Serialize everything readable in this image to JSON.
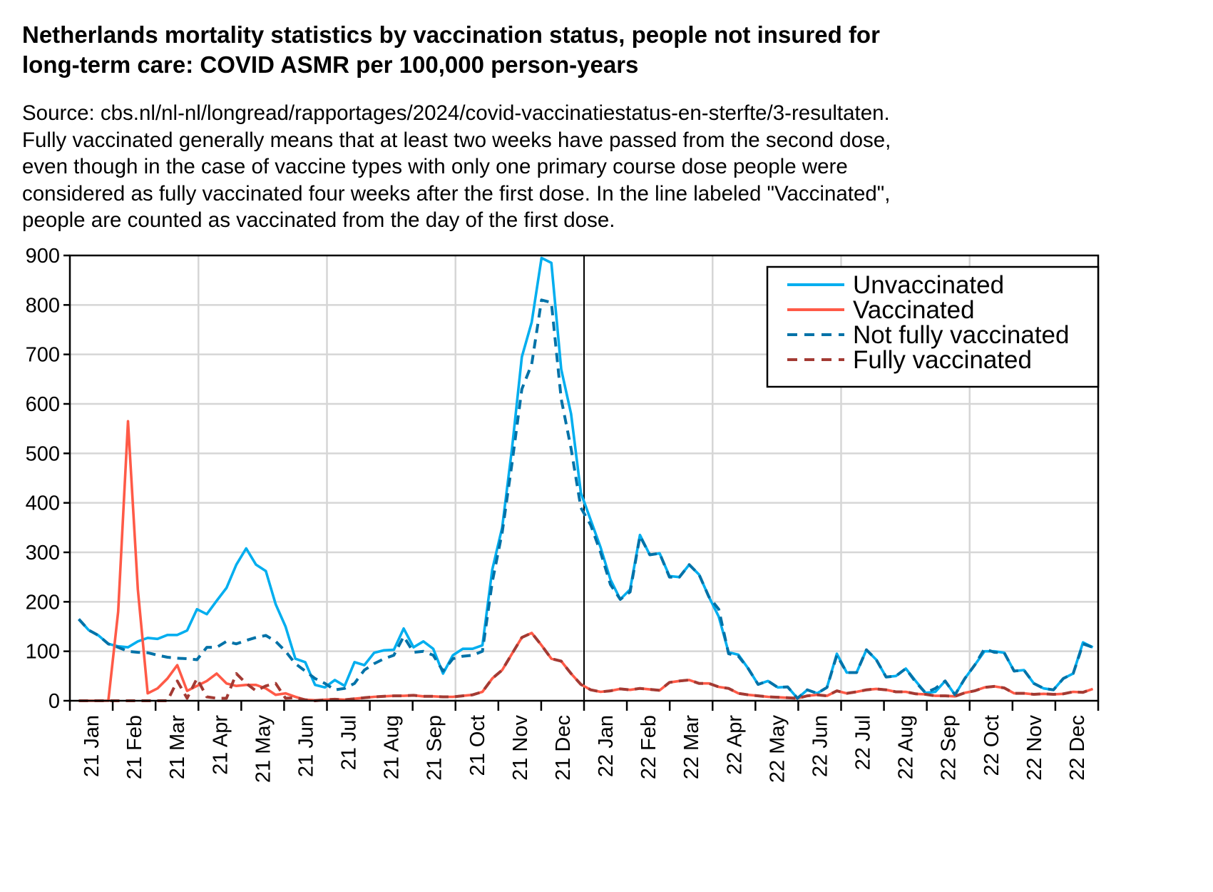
{
  "chart_data": {
    "type": "line",
    "title": "Netherlands mortality statistics by vaccination status, people not insured for long-term care: COVID ASMR per 100,000 person-years",
    "title_lines": [
      "Netherlands mortality statistics by vaccination status, people not insured for",
      "long-term care: COVID ASMR per 100,000 person-years"
    ],
    "subtitle_lines": [
      "Source: cbs.nl/nl-nl/longread/rapportages/2024/covid-vaccinatiestatus-en-sterfte/3-resultaten.",
      "Fully vaccinated generally means that at least two weeks have passed from the second dose,",
      "even though in the case of vaccine types with only one primary course dose people were",
      "considered as fully vaccinated four weeks after the first dose. In the line labeled \"Vaccinated\",",
      "people are counted as vaccinated from the day of the first dose."
    ],
    "xlabel": "",
    "ylabel": "",
    "ylim": [
      0,
      900
    ],
    "yticks": [
      0,
      100,
      200,
      300,
      400,
      500,
      600,
      700,
      800,
      900
    ],
    "x_unit": "week",
    "x_range_weeks": [
      1,
      104
    ],
    "xtick_labels": [
      "21 Jan",
      "21 Feb",
      "21 Mar",
      "21 Apr",
      "21 May",
      "21 Jun",
      "21 Jul",
      "21 Aug",
      "21 Sep",
      "21 Oct",
      "21 Nov",
      "21 Dec",
      "22 Jan",
      "22 Feb",
      "22 Mar",
      "22 Apr",
      "22 May",
      "22 Jun",
      "22 Jul",
      "22 Aug",
      "22 Sep",
      "22 Oct",
      "22 Nov",
      "22 Dec"
    ],
    "grid": true,
    "year_divider": "22 Jan",
    "legend_position": "top-right",
    "series": [
      {
        "name": "Unvaccinated",
        "color": "#00AEEF",
        "style": "solid",
        "values": [
          165,
          143,
          132,
          115,
          110,
          108,
          120,
          127,
          125,
          133,
          133,
          142,
          185,
          175,
          202,
          228,
          275,
          308,
          275,
          262,
          195,
          150,
          85,
          78,
          32,
          27,
          42,
          30,
          78,
          72,
          97,
          102,
          103,
          146,
          108,
          120,
          105,
          55,
          92,
          105,
          105,
          112,
          265,
          350,
          510,
          695,
          765,
          895,
          885,
          670,
          580,
          420,
          365,
          310,
          245,
          205,
          225,
          335,
          295,
          298,
          252,
          250,
          275,
          255,
          210,
          170,
          98,
          93,
          65,
          33,
          40,
          27,
          28,
          5,
          22,
          15,
          27,
          95,
          57,
          57,
          103,
          83,
          48,
          50,
          65,
          40,
          16,
          18,
          40,
          12,
          45,
          72,
          100,
          100,
          97,
          60,
          62,
          35,
          25,
          22,
          45,
          55,
          118,
          108
        ]
      },
      {
        "name": "Vaccinated",
        "color": "#FF5A47",
        "style": "solid",
        "values": [
          0,
          0,
          0,
          0,
          180,
          565,
          225,
          15,
          25,
          45,
          72,
          20,
          30,
          40,
          55,
          35,
          30,
          32,
          32,
          25,
          12,
          15,
          8,
          2,
          1,
          2,
          3,
          2,
          4,
          6,
          8,
          9,
          10,
          10,
          11,
          9,
          9,
          8,
          8,
          10,
          12,
          18,
          45,
          62,
          95,
          128,
          137,
          112,
          85,
          80,
          55,
          33,
          22,
          18,
          20,
          24,
          22,
          25,
          23,
          21,
          37,
          40,
          42,
          35,
          35,
          28,
          25,
          15,
          12,
          10,
          8,
          7,
          6,
          5,
          10,
          12,
          10,
          20,
          15,
          18,
          22,
          24,
          22,
          18,
          18,
          14,
          13,
          10,
          10,
          9,
          16,
          20,
          27,
          29,
          26,
          15,
          15,
          13,
          14,
          13,
          14,
          18,
          17,
          24
        ]
      },
      {
        "name": "Not fully vaccinated",
        "color": "#0072A8",
        "style": "dashed",
        "values": [
          165,
          143,
          132,
          115,
          108,
          100,
          98,
          97,
          92,
          88,
          86,
          85,
          83,
          108,
          108,
          120,
          115,
          122,
          128,
          132,
          120,
          100,
          75,
          60,
          45,
          35,
          22,
          25,
          35,
          62,
          75,
          85,
          92,
          130,
          98,
          100,
          92,
          60,
          85,
          90,
          92,
          100,
          240,
          340,
          480,
          630,
          680,
          810,
          805,
          610,
          510,
          390,
          355,
          300,
          235,
          205,
          220,
          333,
          295,
          298,
          250,
          250,
          275,
          255,
          210,
          185,
          95,
          90,
          65,
          33,
          40,
          27,
          28,
          5,
          22,
          15,
          27,
          92,
          57,
          57,
          103,
          83,
          48,
          50,
          65,
          38,
          16,
          25,
          40,
          12,
          45,
          72,
          105,
          98,
          97,
          60,
          62,
          35,
          25,
          22,
          45,
          55,
          115,
          108
        ]
      },
      {
        "name": "Fully vaccinated",
        "color": "#A33A33",
        "style": "dashed",
        "values": [
          0,
          0,
          0,
          0,
          0,
          0,
          0,
          0,
          0,
          0,
          40,
          5,
          45,
          8,
          5,
          5,
          55,
          35,
          20,
          30,
          35,
          5,
          6,
          2,
          0,
          2,
          3,
          2,
          4,
          6,
          8,
          9,
          10,
          10,
          11,
          9,
          9,
          8,
          8,
          10,
          12,
          18,
          45,
          62,
          95,
          128,
          137,
          112,
          85,
          80,
          55,
          33,
          22,
          18,
          20,
          24,
          22,
          25,
          23,
          21,
          37,
          40,
          42,
          35,
          35,
          28,
          25,
          15,
          12,
          10,
          8,
          7,
          6,
          5,
          10,
          12,
          10,
          20,
          15,
          18,
          22,
          24,
          22,
          18,
          18,
          14,
          13,
          10,
          10,
          9,
          16,
          20,
          27,
          29,
          26,
          15,
          15,
          13,
          14,
          13,
          14,
          18,
          17,
          24
        ]
      }
    ]
  }
}
